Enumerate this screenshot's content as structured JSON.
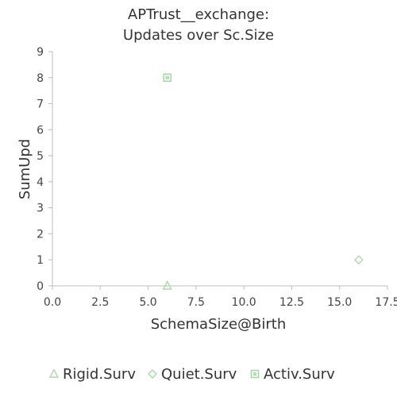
{
  "chart_data": {
    "type": "scatter",
    "title": [
      "APTrust__exchange:",
      "Updates over Sc.Size"
    ],
    "xlabel": "SchemaSize@Birth",
    "ylabel": "SumUpd",
    "xlim": [
      0,
      17.5
    ],
    "ylim": [
      0,
      9
    ],
    "x_ticks": [
      "0.0",
      "2.5",
      "5.0",
      "7.5",
      "10.0",
      "12.5",
      "15.0",
      "17.5"
    ],
    "y_ticks": [
      "0",
      "1",
      "2",
      "3",
      "4",
      "5",
      "6",
      "7",
      "8",
      "9"
    ],
    "grid": false,
    "legend_position": "bottom",
    "series": [
      {
        "name": "Rigid.Surv",
        "marker": "triangle-icon",
        "color": "#a5d6a7",
        "points": [
          {
            "x": 6,
            "y": 0
          }
        ]
      },
      {
        "name": "Quiet.Surv",
        "marker": "diamond-icon",
        "color": "#a5d6a7",
        "points": [
          {
            "x": 16,
            "y": 1
          }
        ]
      },
      {
        "name": "Activ.Surv",
        "marker": "square-icon",
        "color": "#a5d6a7",
        "points": [
          {
            "x": 6,
            "y": 8
          }
        ]
      }
    ]
  }
}
